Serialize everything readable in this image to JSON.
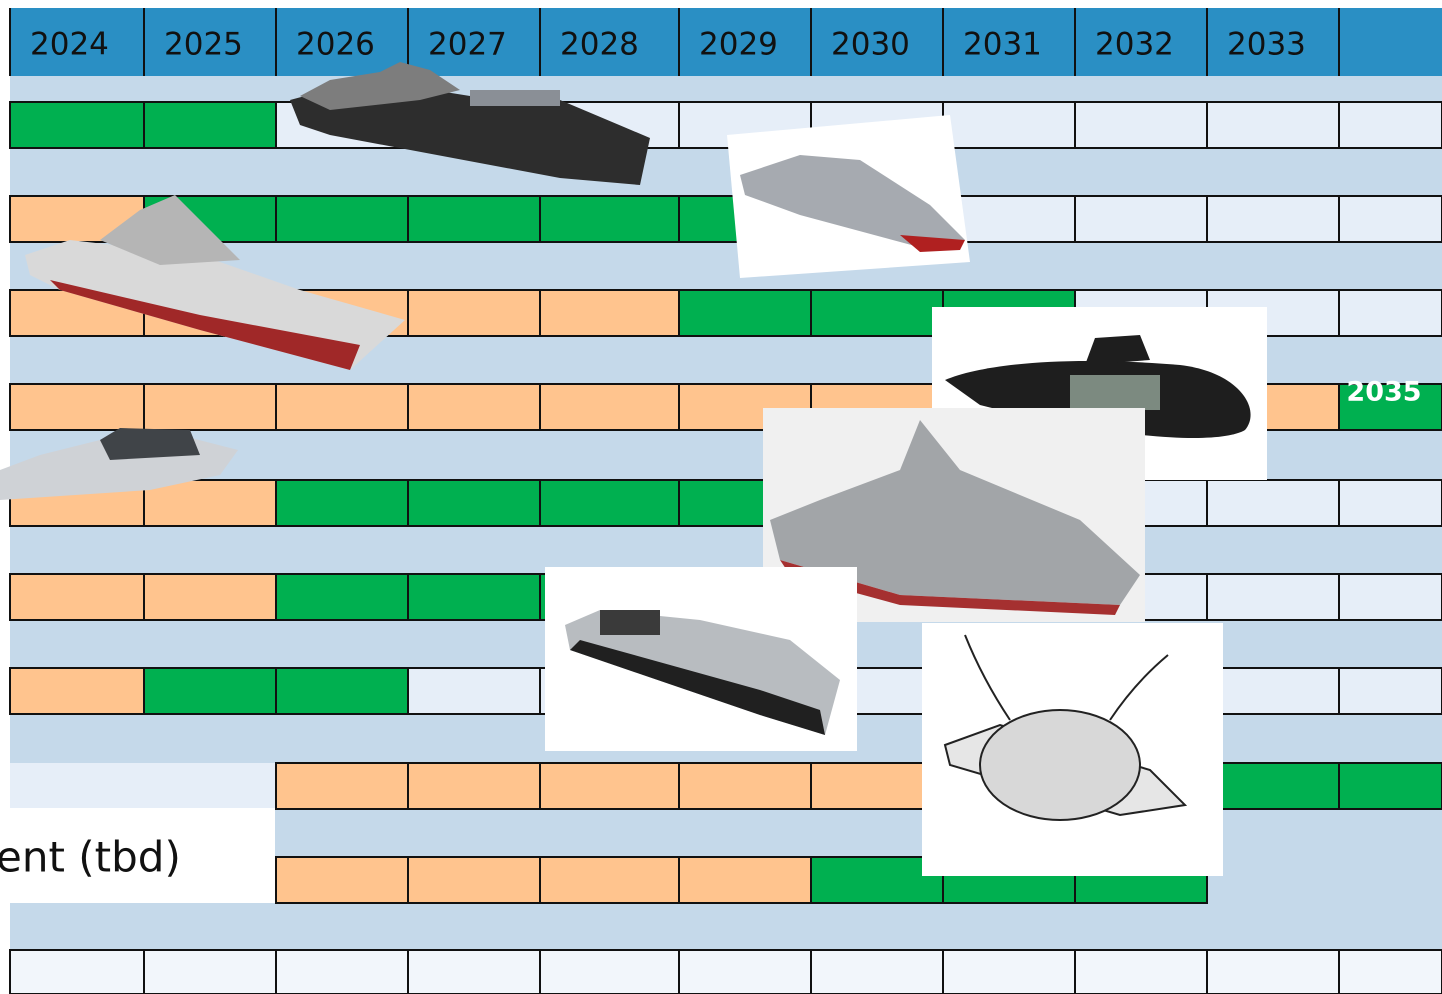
{
  "header": {
    "years": [
      "2024",
      "2025",
      "2026",
      "2027",
      "2028",
      "2029",
      "2030",
      "2031",
      "2032",
      "2033"
    ]
  },
  "rows": {
    "submarine_end": "2035",
    "tbd_label": "ent (tbd)"
  }
}
